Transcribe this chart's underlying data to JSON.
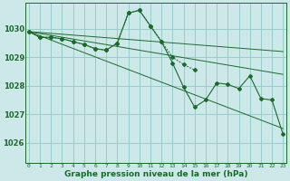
{
  "title": "Graphe pression niveau de la mer (hPa)",
  "bg_color": "#cce8e8",
  "grid_color": "#99cccc",
  "line_color": "#1a6b2a",
  "x_ticks": [
    0,
    1,
    2,
    3,
    4,
    5,
    6,
    7,
    8,
    9,
    10,
    11,
    12,
    13,
    14,
    15,
    16,
    17,
    18,
    19,
    20,
    21,
    22,
    23
  ],
  "y_ticks": [
    1026,
    1027,
    1028,
    1029,
    1030
  ],
  "ylim": [
    1025.3,
    1030.9
  ],
  "xlim": [
    -0.3,
    23.3
  ],
  "series_solid_x": [
    0,
    1,
    2,
    3,
    4,
    5,
    6,
    7,
    8,
    9,
    10,
    11,
    12,
    13,
    14,
    15,
    16,
    17,
    18,
    19,
    20,
    21,
    22,
    23
  ],
  "series_solid_y": [
    1029.9,
    1029.7,
    1029.7,
    1029.65,
    1029.55,
    1029.45,
    1029.3,
    1029.25,
    1029.5,
    1030.55,
    1030.65,
    1030.1,
    1029.55,
    1028.8,
    1027.95,
    1027.25,
    1027.5,
    1028.1,
    1028.05,
    1027.9,
    1028.35,
    1027.55,
    1027.5,
    1026.3
  ],
  "series_dot_x": [
    0,
    1,
    2,
    3,
    4,
    5,
    6,
    7,
    8,
    9,
    10,
    11,
    12,
    13,
    14,
    15
  ],
  "series_dot_y": [
    1029.9,
    1029.7,
    1029.7,
    1029.65,
    1029.55,
    1029.45,
    1029.3,
    1029.25,
    1029.5,
    1030.55,
    1030.65,
    1030.1,
    1029.55,
    1029.0,
    1028.75,
    1028.55
  ],
  "trend1_x": [
    0,
    23
  ],
  "trend1_y": [
    1029.9,
    1026.5
  ],
  "trend2_x": [
    0,
    23
  ],
  "trend2_y": [
    1029.9,
    1028.4
  ],
  "trend3_x": [
    0,
    23
  ],
  "trend3_y": [
    1029.9,
    1029.2
  ]
}
